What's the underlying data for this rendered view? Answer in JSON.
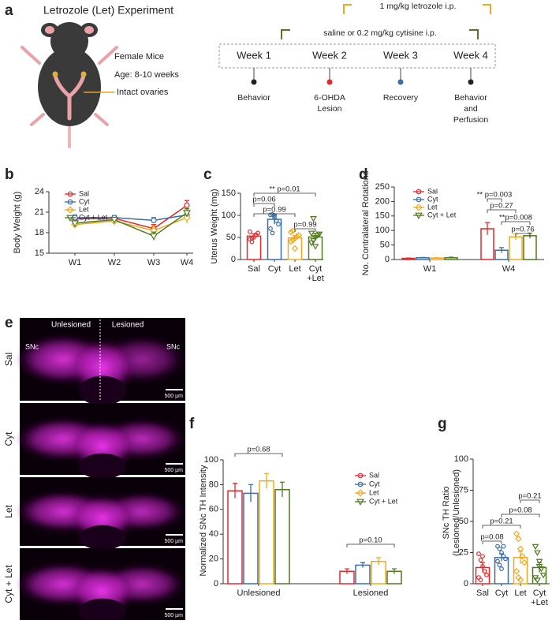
{
  "figure": {
    "panel_a": {
      "letter": "a",
      "title": "Letrozole (Let) Experiment",
      "mouse_labels": [
        "Female Mice",
        "Age: 8-10 weeks",
        "Intact ovaries"
      ],
      "treatments": [
        "1 mg/kg letrozole i.p.",
        "saline or 0.2 mg/kg cytisine i.p."
      ],
      "weeks": [
        "Week 1",
        "Week 2",
        "Week 3",
        "Week 4"
      ],
      "events": [
        [
          "Behavior"
        ],
        [
          "6-OHDA",
          "Lesion"
        ],
        [
          "Recovery"
        ],
        [
          "Behavior",
          "and",
          "Perfusion"
        ]
      ]
    },
    "panel_e": {
      "letter": "e",
      "hemispheres": [
        "Unlesioned",
        "Lesioned"
      ],
      "regions": [
        "SNc",
        "SNc"
      ],
      "rows": [
        "Sal",
        "Cyt",
        "Let",
        "Cyt + Let"
      ],
      "scale_bars": [
        "500 µm",
        "500 µm",
        "500 µm",
        "500 µm"
      ]
    }
  },
  "chart_data": [
    {
      "panel": "b",
      "type": "line",
      "y_label": "Body Weight (g)",
      "categories": [
        "W1",
        "W2",
        "W3",
        "W4"
      ],
      "ylim": [
        15,
        24
      ],
      "yticks": [
        15,
        18,
        21,
        24
      ],
      "legend": "upper left",
      "series": [
        {
          "name": "Sal",
          "color": "#e8272a",
          "values": [
            20.0,
            20.1,
            18.6,
            22.0
          ],
          "errors": [
            0.4,
            0.3,
            0.6,
            0.7
          ]
        },
        {
          "name": "Cyt",
          "color": "#3a6ea8",
          "values": [
            20.2,
            20.2,
            19.8,
            20.6
          ],
          "errors": [
            0.4,
            0.3,
            0.4,
            0.5
          ]
        },
        {
          "name": "Let",
          "color": "#f2a81d",
          "values": [
            19.2,
            19.7,
            18.3,
            20.2
          ],
          "errors": [
            0.3,
            0.3,
            0.7,
            0.8
          ]
        },
        {
          "name": "Cyt + Let",
          "color": "#4f7a1f",
          "values": [
            19.4,
            19.9,
            17.5,
            20.9
          ],
          "errors": [
            0.3,
            0.3,
            0.6,
            0.6
          ]
        }
      ]
    },
    {
      "panel": "c",
      "type": "bar",
      "y_label": "Uterus Weight (mg)",
      "categories": [
        "Sal",
        "Cyt",
        "Let",
        [
          "Cyt",
          "+Let"
        ]
      ],
      "colors": [
        "#e8272a",
        "#3a6ea8",
        "#f2a81d",
        "#4f7a1f"
      ],
      "values": [
        53,
        91,
        49,
        51
      ],
      "errors": [
        5,
        11,
        5,
        8
      ],
      "points": [
        [
          46,
          48,
          50,
          56,
          60,
          63,
          40
        ],
        [
          101,
          102,
          96,
          88,
          80,
          70,
          60,
          100
        ],
        [
          41,
          44,
          48,
          52,
          55,
          62,
          65,
          25
        ],
        [
          38,
          43,
          50,
          55,
          58,
          60,
          93,
          30
        ]
      ],
      "ylim": [
        0,
        150
      ],
      "yticks": [
        0,
        50,
        100,
        150
      ],
      "annotations": [
        "** p=0.01",
        "p=0.06",
        "p=0.99",
        "p=0.99"
      ]
    },
    {
      "panel": "d",
      "type": "bar",
      "y_label": "No. Contralateral Rotations",
      "categories": [
        "W1",
        "W4"
      ],
      "ylim": [
        0,
        250
      ],
      "yticks": [
        0,
        50,
        100,
        150,
        200,
        250
      ],
      "legend": "upper left",
      "series": [
        {
          "name": "Sal",
          "color": "#e8272a",
          "values": [
            4,
            106
          ],
          "errors": [
            1,
            21
          ]
        },
        {
          "name": "Cyt",
          "color": "#3a6ea8",
          "values": [
            6,
            32
          ],
          "errors": [
            1,
            9
          ]
        },
        {
          "name": "Let",
          "color": "#f2a81d",
          "values": [
            5,
            78
          ],
          "errors": [
            1,
            11
          ]
        },
        {
          "name": "Cyt + Let",
          "color": "#4f7a1f",
          "values": [
            6,
            82
          ],
          "errors": [
            2,
            9
          ]
        }
      ],
      "annotations": [
        "** p=0.003",
        "p=0.27",
        "**p=0.008",
        "p=0.76"
      ]
    },
    {
      "panel": "f",
      "type": "bar",
      "y_label": "Normalized SNc TH Intensity",
      "categories": [
        "Unlesioned",
        "Lesioned"
      ],
      "ylim": [
        0,
        100
      ],
      "yticks": [
        0,
        20,
        40,
        60,
        80,
        100
      ],
      "legend": "upper right",
      "series": [
        {
          "name": "Sal",
          "color": "#e8272a",
          "values": [
            75,
            10
          ],
          "errors": [
            6,
            2
          ]
        },
        {
          "name": "Cyt",
          "color": "#3a6ea8",
          "values": [
            73,
            15
          ],
          "errors": [
            7,
            2
          ]
        },
        {
          "name": "Let",
          "color": "#f2a81d",
          "values": [
            83,
            18
          ],
          "errors": [
            6,
            3
          ]
        },
        {
          "name": "Cyt + Let",
          "color": "#4f7a1f",
          "values": [
            76,
            10
          ],
          "errors": [
            6,
            2
          ]
        }
      ],
      "annotations": [
        "p=0.68",
        "p=0.10"
      ]
    },
    {
      "panel": "g",
      "type": "bar",
      "y_label": [
        "SNc TH Ratio",
        "(Lesioned/Unlesioned)"
      ],
      "categories": [
        "Sal",
        "Cyt",
        "Let",
        [
          "Cyt",
          "+Let"
        ]
      ],
      "colors": [
        "#e8272a",
        "#3a6ea8",
        "#f2a81d",
        "#4f7a1f"
      ],
      "values": [
        13,
        21,
        21,
        13
      ],
      "errors": [
        4,
        3,
        5,
        4
      ],
      "points": [
        [
          24,
          19,
          14,
          10,
          7,
          5,
          3,
          22
        ],
        [
          30,
          28,
          25,
          22,
          20,
          18,
          15,
          12,
          30
        ],
        [
          40,
          36,
          28,
          22,
          17,
          10,
          5,
          3
        ],
        [
          30,
          25,
          18,
          12,
          7,
          5,
          3,
          14
        ]
      ],
      "ylim": [
        0,
        100
      ],
      "yticks": [
        0,
        25,
        50,
        75,
        100
      ],
      "annotations": [
        "p=0.21",
        "p=0.08",
        "p=0.21",
        "p=0.08"
      ]
    }
  ]
}
